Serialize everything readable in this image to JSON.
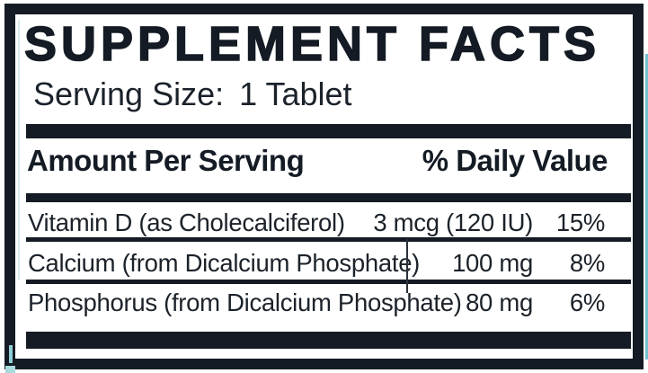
{
  "colors": {
    "ink": "#141b24",
    "text": "#1b222a",
    "teal_accent": "#59b5c5",
    "background": "#ffffff"
  },
  "panel": {
    "title": "SUPPLEMENT FACTS",
    "serving": {
      "label": "Serving Size:",
      "value": "1 Tablet"
    },
    "headers": {
      "amount": "Amount Per Serving",
      "daily_value": "% Daily Value"
    },
    "rows": [
      {
        "name": "Vitamin D (as Cholecalciferol)",
        "amount": "3 mcg (120 IU)",
        "dv": "15%"
      },
      {
        "name": "Calcium (from Dicalcium Phosphate)",
        "amount": "100 mg",
        "dv": "8%"
      },
      {
        "name": "Phosphorus (from Dicalcium Phosphate)",
        "amount": "80 mg",
        "dv": "6%"
      }
    ]
  }
}
